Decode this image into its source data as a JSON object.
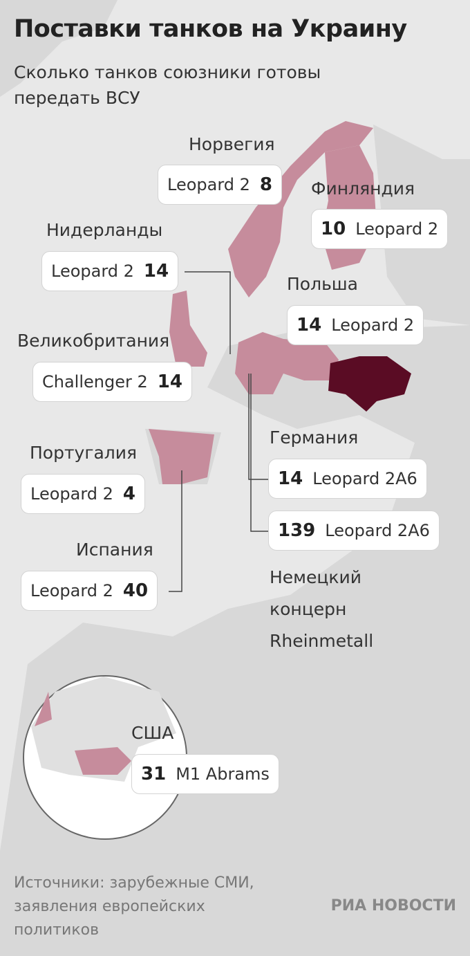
{
  "header": {
    "title": "Поставки танков на Украину",
    "subtitle": "Сколько танков союзники готовы передать ВСУ"
  },
  "countries": [
    {
      "name": "Норвегия",
      "items": [
        {
          "count": "8",
          "model": "Leopard 2"
        }
      ]
    },
    {
      "name": "Финляндия",
      "items": [
        {
          "count": "10",
          "model": "Leopard 2"
        }
      ]
    },
    {
      "name": "Нидерланды",
      "items": [
        {
          "count": "14",
          "model": "Leopard 2"
        }
      ]
    },
    {
      "name": "Польша",
      "items": [
        {
          "count": "14",
          "model": "Leopard 2"
        }
      ]
    },
    {
      "name": "Великобритания",
      "items": [
        {
          "count": "14",
          "model": "Challenger 2"
        }
      ]
    },
    {
      "name": "Германия",
      "items": [
        {
          "count": "14",
          "model": "Leopard 2A6"
        },
        {
          "count": "139",
          "model": "Leopard 2A6",
          "note": "Немецкий концерн Rheinmetall"
        }
      ]
    },
    {
      "name": "Португалия",
      "items": [
        {
          "count": "4",
          "model": "Leopard 2"
        }
      ]
    },
    {
      "name": "Испания",
      "items": [
        {
          "count": "40",
          "model": "Leopard 2"
        }
      ]
    },
    {
      "name": "США",
      "items": [
        {
          "count": "31",
          "model": "M1 Abrams"
        }
      ]
    }
  ],
  "footer": {
    "source": "Источники: зарубежные СМИ, заявления европейских политиков",
    "logo": "РИА НОВОСТИ"
  }
}
